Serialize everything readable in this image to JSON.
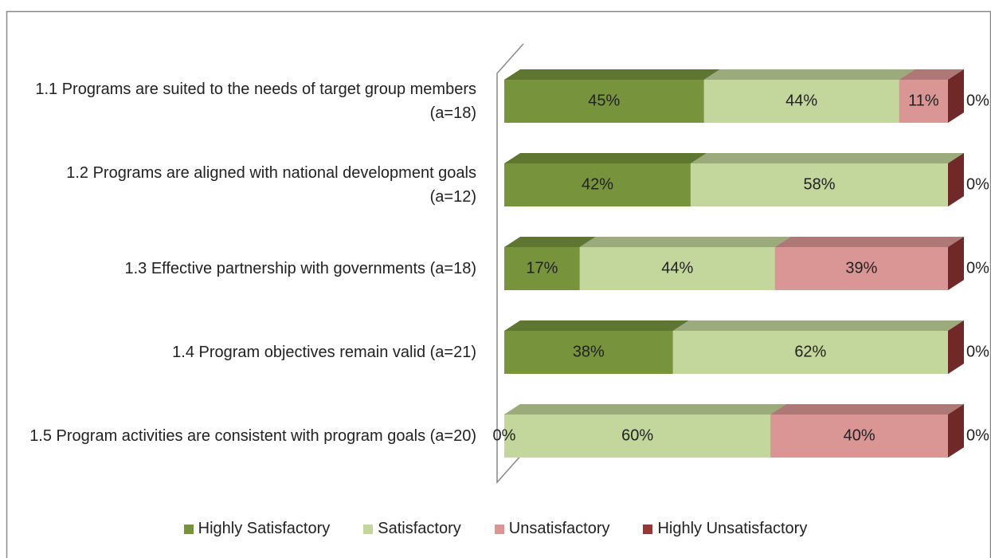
{
  "chart_data": {
    "type": "stacked-bar-3d",
    "categories": [
      "1.1 Programs are suited to the needs of target group members (a=18)",
      "1.2 Programs are aligned with national development goals (a=12)",
      "1.3 Effective partnership with governments (a=18)",
      "1.4 Program objectives remain valid (a=21)",
      "1.5 Program activities are consistent with program goals (a=20)"
    ],
    "series": [
      {
        "name": "Highly Satisfactory",
        "color": "#77933c",
        "values": [
          45,
          42,
          17,
          38,
          0
        ],
        "value_labels": [
          "45%",
          "42%",
          "17%",
          "38%",
          "0%"
        ]
      },
      {
        "name": "Satisfactory",
        "color": "#c3d69b",
        "values": [
          44,
          58,
          44,
          62,
          60
        ],
        "value_labels": [
          "44%",
          "58%",
          "44%",
          "62%",
          "60%"
        ]
      },
      {
        "name": "Unsatisfactory",
        "color": "#d99694",
        "values": [
          11,
          0,
          39,
          0,
          40
        ],
        "value_labels": [
          "11%",
          null,
          "39%",
          null,
          "40%"
        ]
      },
      {
        "name": "Highly Unsatisfactory",
        "color": "#953735",
        "values": [
          0,
          0,
          0,
          0,
          0
        ],
        "value_labels": [
          "0%",
          "0%",
          "0%",
          "0%",
          "0%"
        ]
      }
    ],
    "legend": "bottom"
  }
}
